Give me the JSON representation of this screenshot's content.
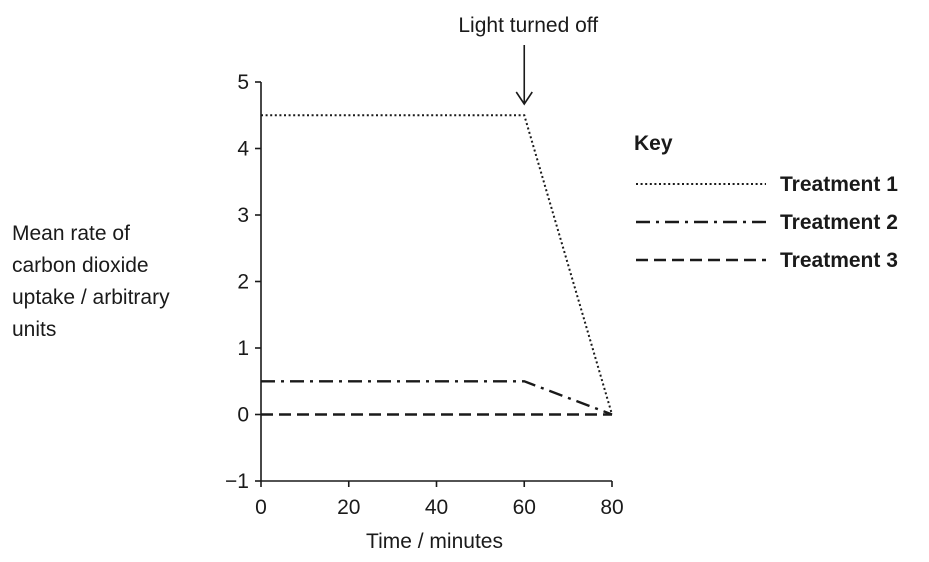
{
  "chart_data": {
    "type": "line",
    "x": [
      0,
      60,
      80
    ],
    "xlabel": "Time / minutes",
    "ylabel_lines": [
      "Mean rate of",
      "carbon dioxide",
      "uptake / arbitrary",
      "units"
    ],
    "xlim": [
      0,
      80
    ],
    "ylim": [
      -1,
      5
    ],
    "xticks": [
      0,
      20,
      40,
      60,
      80
    ],
    "yticks": [
      -1,
      0,
      1,
      2,
      3,
      4,
      5
    ],
    "grid": false,
    "annotation": {
      "text": "Light turned off",
      "x": 60
    },
    "legend": {
      "title": "Key",
      "placement": "right"
    },
    "series": [
      {
        "name": "Treatment 1",
        "style": "dotted",
        "values": [
          4.5,
          4.5,
          0
        ]
      },
      {
        "name": "Treatment 2",
        "style": "dash-dot",
        "values": [
          0.5,
          0.5,
          0
        ]
      },
      {
        "name": "Treatment 3",
        "style": "dashed",
        "values": [
          0,
          0,
          0
        ]
      }
    ]
  }
}
